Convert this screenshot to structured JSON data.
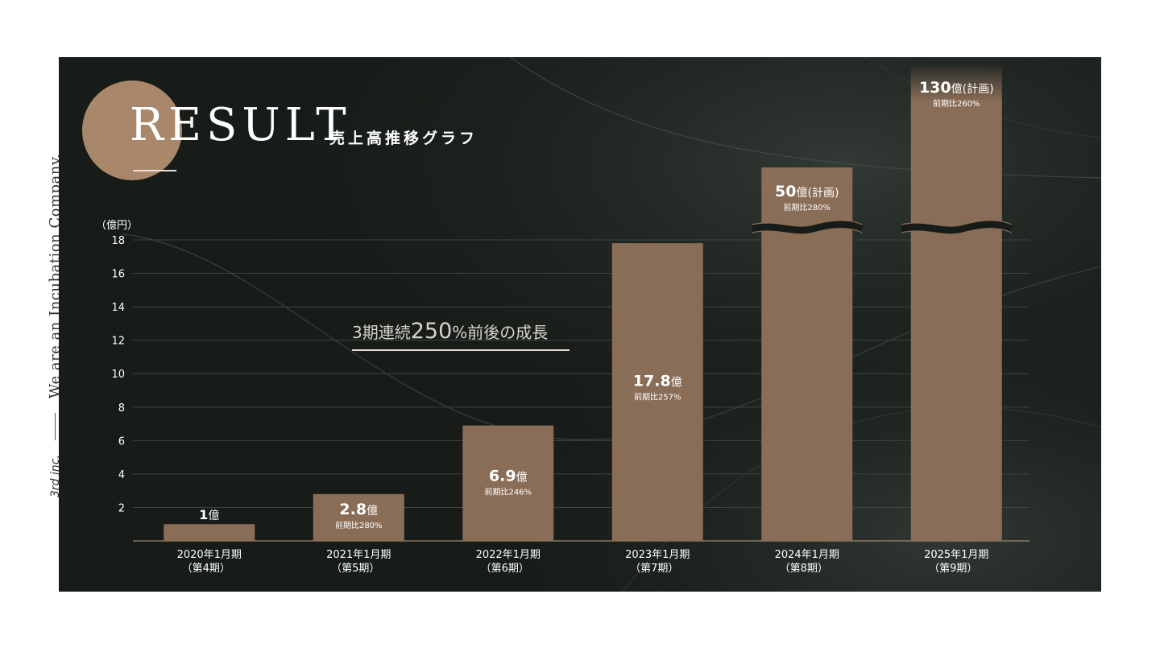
{
  "side": {
    "brand": "3rd inc.",
    "tagline": "We are an Incubation Company."
  },
  "header": {
    "title": "RESULT",
    "subtitle": "売上高推移グラフ"
  },
  "annotation": {
    "prefix": "3期連続",
    "number": "250",
    "suffix": "%前後の成長"
  },
  "colors": {
    "panel": "#171c18",
    "bar": "#8a6d57",
    "accent": "#a9876a",
    "text": "#ffffff"
  },
  "chart_data": {
    "type": "bar",
    "unit_label": "（億円）",
    "ylim": [
      0,
      18
    ],
    "yticks": [
      2,
      4,
      6,
      8,
      10,
      12,
      14,
      16,
      18
    ],
    "axis_break": true,
    "categories": [
      [
        "2020年1月期",
        "（第4期）"
      ],
      [
        "2021年1月期",
        "（第5期）"
      ],
      [
        "2022年1月期",
        "（第6期）"
      ],
      [
        "2023年1月期",
        "（第7期）"
      ],
      [
        "2024年1月期",
        "（第8期）"
      ],
      [
        "2025年1月期",
        "（第9期）"
      ]
    ],
    "values": [
      1,
      2.8,
      6.9,
      17.8,
      50,
      130
    ],
    "labels": [
      {
        "num": "1",
        "unit": "億",
        "growth": ""
      },
      {
        "num": "2.8",
        "unit": "億",
        "growth": "前期比280%"
      },
      {
        "num": "6.9",
        "unit": "億",
        "growth": "前期比246%"
      },
      {
        "num": "17.8",
        "unit": "億",
        "growth": "前期比257%"
      },
      {
        "num": "50",
        "unit": "億(計画)",
        "growth": "前期比280%"
      },
      {
        "num": "130",
        "unit": "億(計画)",
        "growth": "前期比260%"
      }
    ]
  }
}
